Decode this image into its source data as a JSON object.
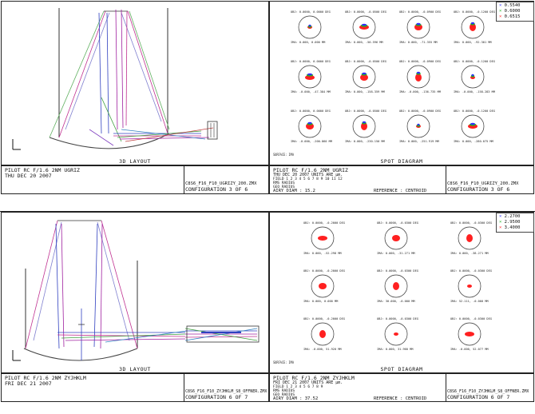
{
  "panels": [
    {
      "layout_title": "3D LAYOUT",
      "spot_title": "SPOT DIAGRAM",
      "layout_footer": {
        "line1": "PILOT RC F/1.6 2NM UGRIZ",
        "line2": "THU DEC 20 2007",
        "file": "C8S6_F16_F10_UGRIZY_200.ZMX",
        "config": "CONFIGURATION 3 OF 6"
      },
      "spot_footer": {
        "line1": "PILOT RC F/1.6 2NM UGRIZ",
        "line2": "THU DEC 20 2007 UNITS ARE µm.",
        "table_line1": "FIELD   1    2    3    4    5    6    7    8    9   10   11   12",
        "table_line2": "RMS RADIUS",
        "table_line3": "GEO RADIUS",
        "table_line4": "BOX",
        "airy": "AIRY DIAM   :    15.2",
        "reference": "REFERENCE : CENTROID",
        "file": "C8S6_F16_F10_UGRIZY_200.ZMX",
        "config": "CONFIGURATION 3 OF 6"
      },
      "legend": [
        {
          "label": "0.5540",
          "color": "#3030ff"
        },
        {
          "label": "0.6000",
          "color": "#20b020"
        },
        {
          "label": "0.6515",
          "color": "#ff2020"
        }
      ],
      "surface_label": "SURFACE: IMA",
      "spot_rows": [
        {
          "captions": [
            "IMA: 0.000, 0.000 MM",
            "IMA: 0.000, -50.596 MM",
            "IMA: 0.000, -71.355 MM",
            "IMA: 0.000, -92.301 MM"
          ]
        },
        {
          "captions": [
            "IMA: -0.000, -47.384 MM",
            "IMA: 0.000, -158.359 MM",
            "IMA: -0.000, -136.735 MM",
            "IMA: -0.000, -158.283 MM"
          ]
        },
        {
          "captions": [
            "IMA: -0.000, -200.860 MM",
            "IMA: 0.000, -230.150 MM",
            "IMA: 0.000, -251.919 MM",
            "IMA: 0.000, -280.075 MM"
          ]
        }
      ],
      "field_headers": [
        "OBJ: 0.0000, 0.0000 DEG",
        "OBJ: 0.0000, -0.0500 DEG",
        "OBJ: 0.0000, -0.0900 DEG",
        "OBJ: 0.0000, -0.1200 DEG"
      ]
    },
    {
      "layout_title": "3D LAYOUT",
      "spot_title": "SPOT DIAGRAM",
      "layout_footer": {
        "line1": "PILOT RC F/1.6 2NM ZYJHKLM",
        "line2": "FRI DEC 21 2007",
        "file": "C8S6_F16_F10_ZYJHKLM_S8_OFFNER.ZMX",
        "config": "CONFIGURATION 6 OF 7"
      },
      "spot_footer": {
        "line1": "PILOT RC F/1.6 2NM ZYJHKLM",
        "line2": "FRI DEC 21 2007 UNITS ARE µm.",
        "table_line1": "FIELD   1    2    3    4    5    6    7    8    9",
        "table_line2": "RMS RADIUS",
        "table_line3": "GEO RADIUS",
        "table_line4": "",
        "airy": "AIRY DIAM   :    37.52",
        "reference": "REFERENCE : CENTROID",
        "file": "C8S6_F16_F10_ZYJHKLM_S8_OFFNER.ZMX",
        "config": "CONFIGURATION 6 OF 7"
      },
      "legend": [
        {
          "label": "2.2700",
          "color": "#3030ff"
        },
        {
          "label": "2.9500",
          "color": "#20b020"
        },
        {
          "label": "3.4000",
          "color": "#ff2020"
        }
      ],
      "surface_label": "SURFACE: IMA",
      "spot_rows": [
        {
          "captions": [
            "IMA: 0.000, -52.298 MM",
            "IMA: 0.000, -31.271 MM",
            "IMA: 0.000, -38.271 MM"
          ]
        },
        {
          "captions": [
            "IMA: 0.000, 0.000 MM",
            "IMA: 30.000, -0.000 MM",
            "IMA: 52.111, -0.000 MM"
          ]
        },
        {
          "captions": [
            "IMA: -0.000, 51.920 MM",
            "IMA: 0.000, 31.960 MM",
            "IMA: -0.000, 52.077 MM"
          ]
        }
      ],
      "field_headers": [
        "OBJ: 0.0000, -0.2000 DEG",
        "OBJ: 0.0000, -0.0300 DEG",
        "OBJ: 0.0000, -0.0300 DEG"
      ]
    }
  ]
}
